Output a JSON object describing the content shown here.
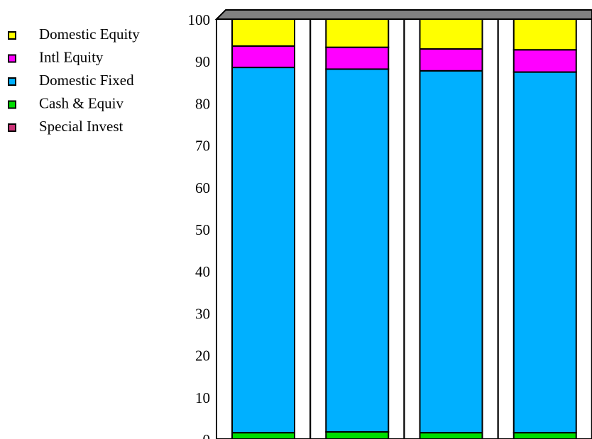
{
  "chart_data": {
    "type": "bar",
    "stacked": true,
    "three_d": true,
    "categories": [
      "",
      "",
      "",
      ""
    ],
    "series": [
      {
        "name": "Cash & Equiv",
        "color": "#00dd00",
        "values": [
          1.5,
          1.7,
          1.5,
          1.5
        ]
      },
      {
        "name": "Domestic Fixed",
        "color": "#00b0ff",
        "values": [
          87.0,
          86.4,
          86.2,
          85.9
        ]
      },
      {
        "name": "Intl Equity",
        "color": "#ff00ff",
        "values": [
          5.1,
          5.2,
          5.2,
          5.3
        ]
      },
      {
        "name": "Domestic Equity",
        "color": "#ffff00",
        "values": [
          6.4,
          6.7,
          7.1,
          7.3
        ]
      },
      {
        "name": "Special Invest",
        "color": "#cc3377",
        "values": [
          0,
          0,
          0,
          0
        ]
      }
    ],
    "legend_order": [
      "Domestic Equity",
      "Intl Equity",
      "Domestic Fixed",
      "Cash & Equiv",
      "Special Invest"
    ],
    "legend_position": "top-left",
    "ylim": [
      0,
      100
    ],
    "yticks": [
      "0",
      "10",
      "20",
      "30",
      "40",
      "50",
      "60",
      "70",
      "80",
      "90",
      "100"
    ],
    "grid": false,
    "title": "",
    "xlabel": "",
    "ylabel": ""
  }
}
